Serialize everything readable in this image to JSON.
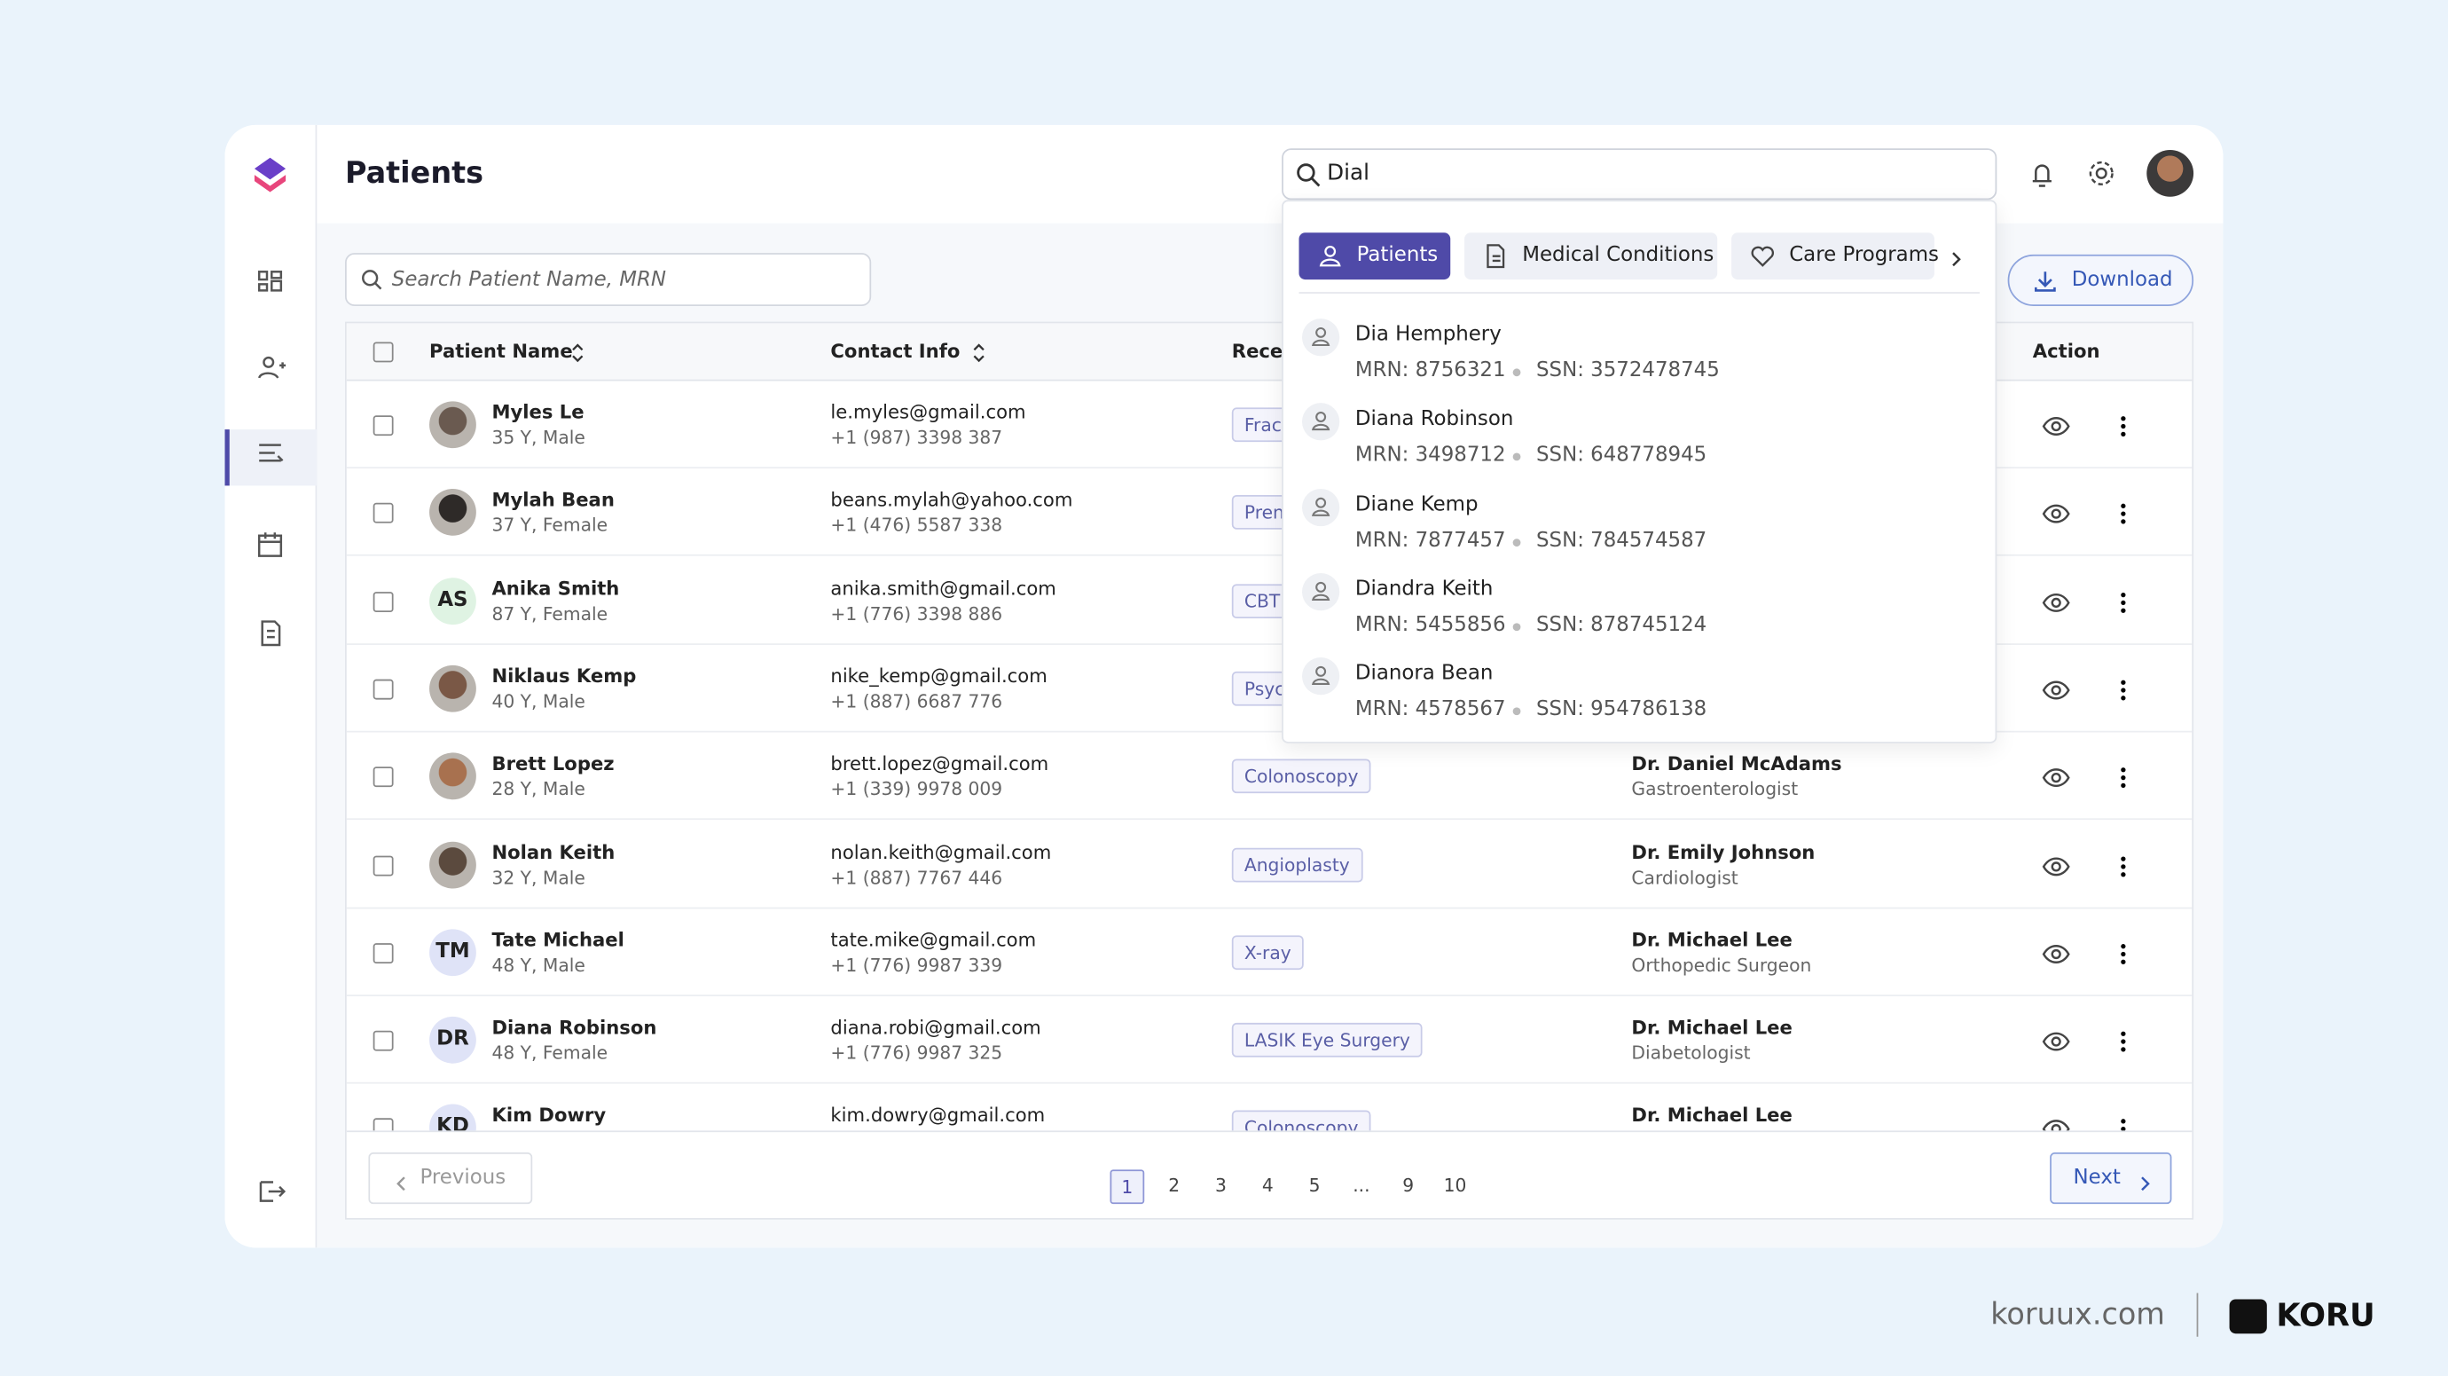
{
  "header": {
    "title": "Patients"
  },
  "search": {
    "placeholder": "Search Patient Name, MRN"
  },
  "global_search": {
    "query": "Dial"
  },
  "download": "Download",
  "dropdown": {
    "tabs": [
      "Patients",
      "Medical Conditions",
      "Care Programs"
    ],
    "results": [
      {
        "name": "Dia Hemphery",
        "mrn": "MRN: 8756321",
        "ssn": "SSN: 3572478745"
      },
      {
        "name": "Diana Robinson",
        "mrn": "MRN: 3498712",
        "ssn": "SSN: 648778945"
      },
      {
        "name": "Diane Kemp",
        "mrn": "MRN: 7877457",
        "ssn": "SSN: 784574587"
      },
      {
        "name": "Diandra Keith",
        "mrn": "MRN: 5455856",
        "ssn": "SSN: 878745124"
      },
      {
        "name": "Dianora Bean",
        "mrn": "MRN: 4578567",
        "ssn": "SSN: 954786138"
      }
    ]
  },
  "table": {
    "headers": [
      "Patient Name",
      "Contact Info",
      "Recent Procedure",
      "Action"
    ],
    "rows": [
      {
        "name": "Myles Le",
        "info": "35 Y, Male",
        "email": "le.myles@gmail.com",
        "phone": "+1 (987) 3398 387",
        "procedure": "Fracture"
      },
      {
        "name": "Mylah Bean",
        "info": "37 Y, Female",
        "email": "beans.mylah@yahoo.com",
        "phone": "+1 (476) 5587 338",
        "procedure": "Prenatal"
      },
      {
        "initials": "AS",
        "name": "Anika Smith",
        "info": "87 Y, Female",
        "email": "anika.smith@gmail.com",
        "phone": "+1 (776) 3398 886",
        "procedure": "CBT"
      },
      {
        "name": "Niklaus Kemp",
        "info": "40 Y, Male",
        "email": "nike_kemp@gmail.com",
        "phone": "+1 (887) 6687 776",
        "procedure": "Psychotherapy"
      },
      {
        "name": "Brett Lopez",
        "info": "28 Y, Male",
        "email": "brett.lopez@gmail.com",
        "phone": "+1 (339) 9978 009",
        "procedure": "Colonoscopy",
        "doctor": "Dr. Daniel McAdams",
        "specialty": "Gastroenterologist"
      },
      {
        "name": "Nolan Keith",
        "info": "32 Y, Male",
        "email": "nolan.keith@gmail.com",
        "phone": "+1 (887) 7767 446",
        "procedure": "Angioplasty",
        "doctor": "Dr. Emily Johnson",
        "specialty": "Cardiologist"
      },
      {
        "initials": "TM",
        "name": "Tate Michael",
        "info": "48 Y, Male",
        "email": "tate.mike@gmail.com",
        "phone": "+1 (776) 9987 339",
        "procedure": "X-ray",
        "doctor": "Dr. Michael Lee",
        "specialty": "Orthopedic Surgeon"
      },
      {
        "initials": "DR",
        "name": "Diana Robinson",
        "info": "48 Y, Female",
        "email": "diana.robi@gmail.com",
        "phone": "+1 (776) 9987 325",
        "procedure": "LASIK Eye Surgery",
        "doctor": "Dr. Michael Lee",
        "specialty": "Diabetologist"
      },
      {
        "initials": "KD",
        "name": "Kim Dowry",
        "email": "kim.dowry@gmail.com",
        "procedure": "Colonoscopy",
        "doctor": "Dr. Michael Lee"
      }
    ]
  },
  "pagination": {
    "previous": "Previous",
    "pages": [
      "1",
      "2",
      "3",
      "4",
      "5",
      "...",
      "9",
      "10"
    ],
    "next": "Next"
  },
  "footer": {
    "site": "koruux.com",
    "brand": "KORU"
  }
}
